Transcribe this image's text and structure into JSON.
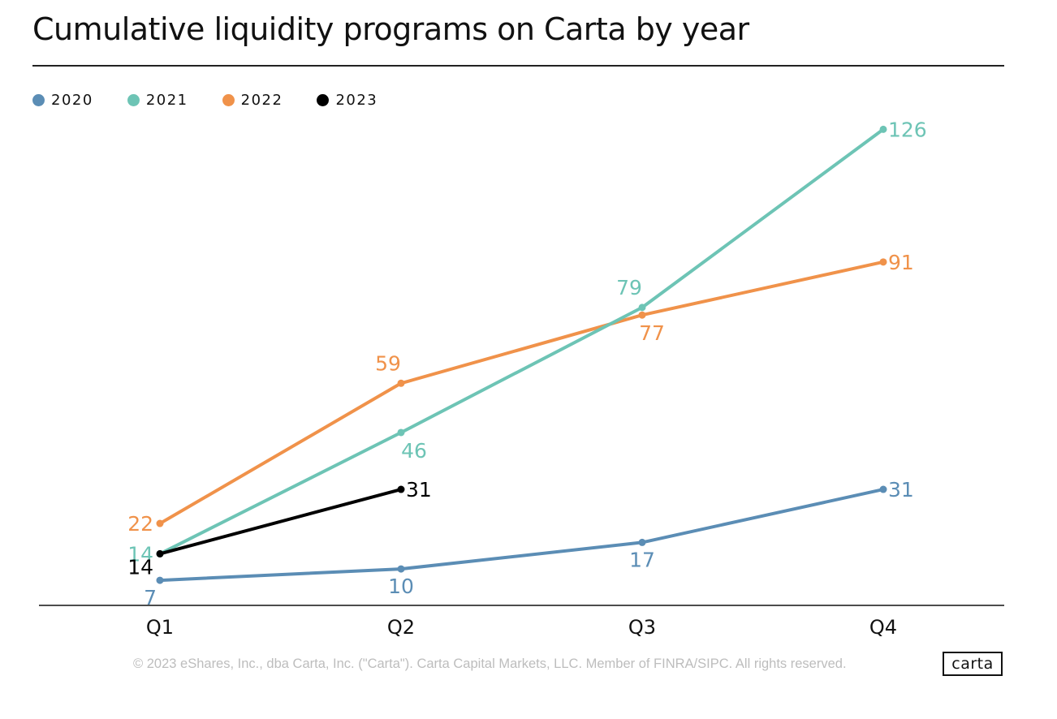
{
  "title": "Cumulative liquidity programs on Carta by year",
  "legend": [
    {
      "label": "2020",
      "color": "#5b8db5"
    },
    {
      "label": "2021",
      "color": "#6dc4b5"
    },
    {
      "label": "2022",
      "color": "#f0924a"
    },
    {
      "label": "2023",
      "color": "#000000"
    }
  ],
  "chart_data": {
    "type": "line",
    "title": "Cumulative liquidity programs on Carta by year",
    "xlabel": "",
    "ylabel": "",
    "categories": [
      "Q1",
      "Q2",
      "Q3",
      "Q4"
    ],
    "ylim": [
      0,
      130
    ],
    "grid": false,
    "legend_placement": "top-left",
    "series": [
      {
        "name": "2020",
        "color": "#5b8db5",
        "values": [
          7,
          10,
          17,
          31
        ]
      },
      {
        "name": "2021",
        "color": "#6dc4b5",
        "values": [
          14,
          46,
          79,
          126
        ]
      },
      {
        "name": "2022",
        "color": "#f0924a",
        "values": [
          22,
          59,
          77,
          91
        ]
      },
      {
        "name": "2023",
        "color": "#000000",
        "values": [
          14,
          31,
          null,
          null
        ]
      }
    ]
  },
  "footer": "© 2023 eShares, Inc., dba Carta, Inc. (\"Carta\"). Carta Capital Markets, LLC. Member of FINRA/SIPC. All rights reserved.",
  "logo_text": "carta"
}
